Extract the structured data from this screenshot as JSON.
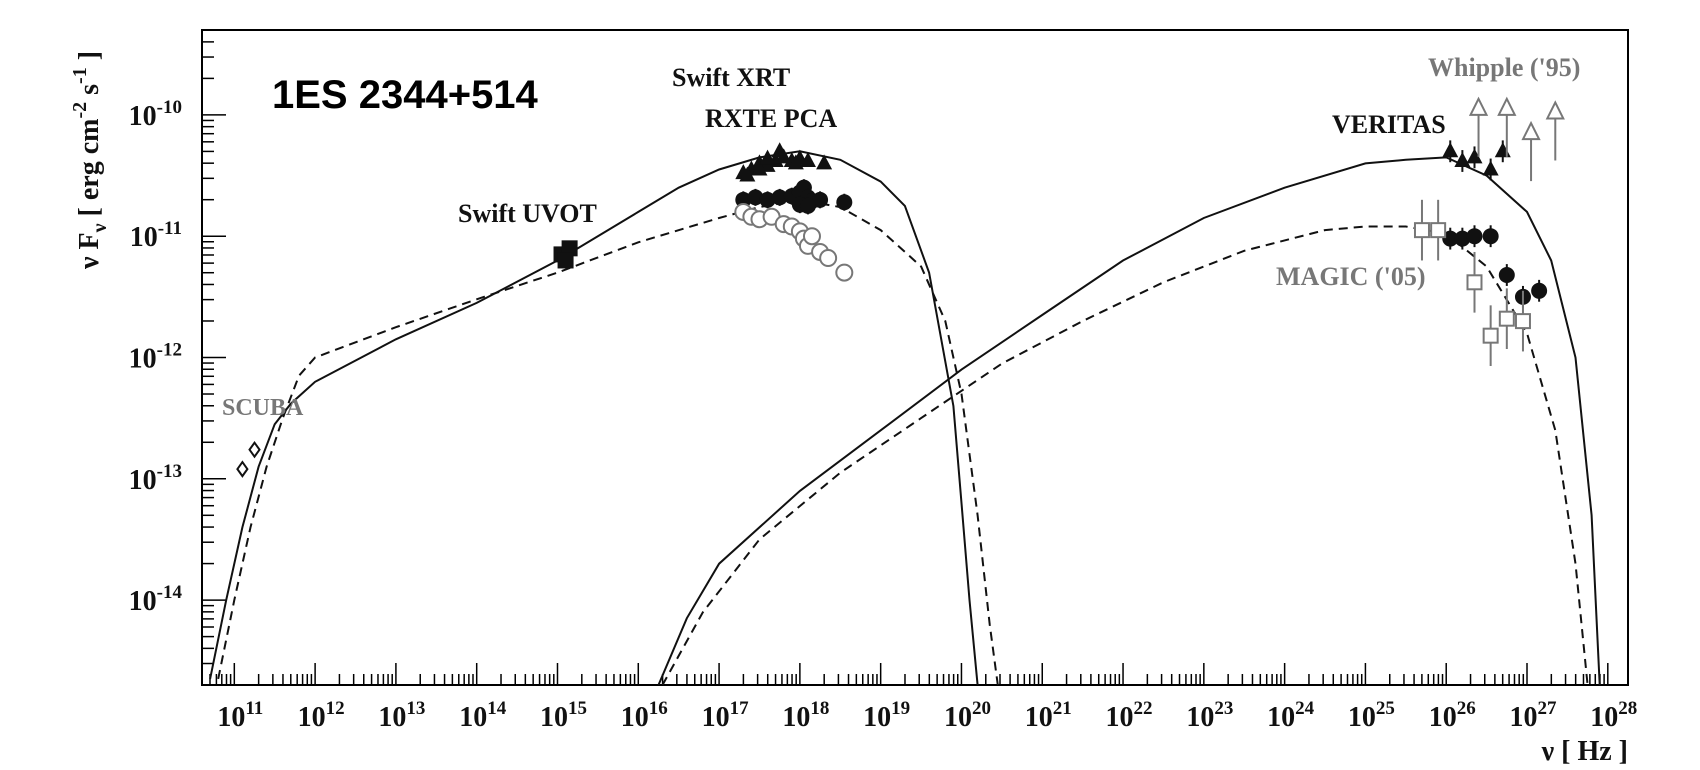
{
  "chart_data": {
    "type": "scatter",
    "title": "1ES 2344+514",
    "xlabel": "ν [ Hz ]",
    "ylabel": "ν F_ν [ erg cm^-2 s^-1 ]",
    "xscale": "log",
    "yscale": "log",
    "xlim": [
      10.6,
      28.25
    ],
    "ylim": [
      -14.7,
      -9.3
    ],
    "grid": false,
    "x_ticks": [
      "11",
      "12",
      "13",
      "14",
      "15",
      "16",
      "17",
      "18",
      "19",
      "20",
      "21",
      "22",
      "23",
      "24",
      "25",
      "26",
      "27",
      "28"
    ],
    "y_ticks": [
      "-14",
      "-13",
      "-12",
      "-11",
      "-10"
    ],
    "annotations": [
      {
        "text": "Swift XRT",
        "color": "#111111"
      },
      {
        "text": "RXTE PCA",
        "color": "#111111"
      },
      {
        "text": "Swift UVOT",
        "color": "#111111"
      },
      {
        "text": "SCUBA",
        "color": "#777777"
      },
      {
        "text": "VERITAS",
        "color": "#111111"
      },
      {
        "text": "Whipple ('95)",
        "color": "#777777"
      },
      {
        "text": "MAGIC ('05)",
        "color": "#777777"
      }
    ],
    "series": [
      {
        "key": "scuba",
        "marker": "open-diamond",
        "color": "#111111",
        "points": [
          [
            11.1,
            -12.92
          ],
          [
            11.25,
            -12.76
          ]
        ]
      },
      {
        "key": "uvot",
        "marker": "filled-square",
        "color": "#111111",
        "points": [
          [
            15.05,
            -11.15
          ],
          [
            15.15,
            -11.1
          ],
          [
            15.1,
            -11.2
          ]
        ]
      },
      {
        "key": "xrt",
        "marker": "filled-triangle",
        "color": "#111111",
        "points": [
          [
            17.3,
            -10.48
          ],
          [
            17.4,
            -10.45
          ],
          [
            17.5,
            -10.4
          ],
          [
            17.6,
            -10.42
          ],
          [
            17.7,
            -10.38
          ],
          [
            17.75,
            -10.3
          ],
          [
            17.8,
            -10.35
          ],
          [
            17.9,
            -10.38
          ],
          [
            18.0,
            -10.36
          ],
          [
            18.1,
            -10.38
          ],
          [
            18.3,
            -10.4
          ],
          [
            17.35,
            -10.5
          ],
          [
            17.5,
            -10.45
          ],
          [
            17.6,
            -10.36
          ],
          [
            17.95,
            -10.4
          ]
        ]
      },
      {
        "key": "rxte",
        "marker": "filled-circle",
        "color": "#111111",
        "points": [
          [
            17.3,
            -10.7
          ],
          [
            17.45,
            -10.68
          ],
          [
            17.6,
            -10.7
          ],
          [
            17.75,
            -10.68
          ],
          [
            17.9,
            -10.67
          ],
          [
            18.0,
            -10.64
          ],
          [
            18.05,
            -10.6
          ],
          [
            18.1,
            -10.68
          ],
          [
            18.15,
            -10.71
          ],
          [
            18.25,
            -10.7
          ],
          [
            18.0,
            -10.74
          ],
          [
            18.1,
            -10.75
          ],
          [
            18.55,
            -10.72
          ]
        ],
        "yerr": 0.07
      },
      {
        "key": "xrt_low",
        "marker": "open-circle",
        "color": "#777777",
        "points": [
          [
            17.3,
            -10.8
          ],
          [
            17.4,
            -10.84
          ],
          [
            17.5,
            -10.86
          ],
          [
            17.65,
            -10.84
          ],
          [
            17.8,
            -10.9
          ],
          [
            17.9,
            -10.92
          ],
          [
            18.0,
            -10.96
          ],
          [
            18.05,
            -11.02
          ],
          [
            18.1,
            -11.08
          ],
          [
            18.15,
            -11.0
          ],
          [
            18.25,
            -11.13
          ],
          [
            18.35,
            -11.18
          ],
          [
            18.55,
            -11.3
          ]
        ],
        "yerr": 0.07
      },
      {
        "key": "veritas",
        "marker": "filled-triangle",
        "color": "#111111",
        "points": [
          [
            26.05,
            -10.3
          ],
          [
            26.2,
            -10.38
          ],
          [
            26.35,
            -10.35
          ],
          [
            26.55,
            -10.45
          ],
          [
            26.7,
            -10.3
          ]
        ],
        "yerr": 0.09
      },
      {
        "key": "veritas_low",
        "marker": "filled-circle",
        "color": "#111111",
        "points": [
          [
            26.05,
            -11.02
          ],
          [
            26.2,
            -11.02
          ],
          [
            26.35,
            -11.0
          ],
          [
            26.55,
            -11.0
          ],
          [
            26.75,
            -11.32
          ],
          [
            26.95,
            -11.5
          ],
          [
            27.15,
            -11.45
          ]
        ],
        "yerr": 0.09
      },
      {
        "key": "whipple",
        "marker": "open-triangle",
        "color": "#777777",
        "points": [
          [
            26.4,
            -9.95
          ],
          [
            26.75,
            -9.95
          ],
          [
            27.05,
            -10.15
          ],
          [
            27.35,
            -9.98
          ]
        ],
        "upper_limit": true
      },
      {
        "key": "magic",
        "marker": "open-square",
        "color": "#777777",
        "points": [
          [
            25.7,
            -10.95
          ],
          [
            25.9,
            -10.95
          ],
          [
            26.35,
            -11.38
          ],
          [
            26.55,
            -11.82
          ],
          [
            26.75,
            -11.68
          ],
          [
            26.95,
            -11.7
          ]
        ],
        "yerr": 0.25
      }
    ],
    "curves": [
      {
        "key": "sync_solid",
        "style": "solid",
        "points": [
          [
            10.7,
            -14.65
          ],
          [
            10.9,
            -14.0
          ],
          [
            11.1,
            -13.4
          ],
          [
            11.3,
            -12.9
          ],
          [
            11.5,
            -12.55
          ],
          [
            11.7,
            -12.38
          ],
          [
            12.0,
            -12.2
          ],
          [
            13.0,
            -11.85
          ],
          [
            14.0,
            -11.55
          ],
          [
            15.0,
            -11.2
          ],
          [
            16.0,
            -10.8
          ],
          [
            16.5,
            -10.6
          ],
          [
            17.0,
            -10.45
          ],
          [
            17.5,
            -10.35
          ],
          [
            18.0,
            -10.3
          ],
          [
            18.5,
            -10.37
          ],
          [
            19.0,
            -10.55
          ],
          [
            19.3,
            -10.75
          ],
          [
            19.6,
            -11.3
          ],
          [
            19.9,
            -12.4
          ],
          [
            20.0,
            -13.2
          ],
          [
            20.1,
            -14.0
          ],
          [
            20.2,
            -14.7
          ]
        ]
      },
      {
        "key": "sync_dashed",
        "style": "dashed",
        "points": [
          [
            10.8,
            -14.65
          ],
          [
            11.0,
            -14.0
          ],
          [
            11.2,
            -13.4
          ],
          [
            11.4,
            -12.9
          ],
          [
            11.6,
            -12.5
          ],
          [
            11.8,
            -12.15
          ],
          [
            12.0,
            -12.0
          ],
          [
            13.0,
            -11.75
          ],
          [
            14.0,
            -11.52
          ],
          [
            15.0,
            -11.3
          ],
          [
            16.0,
            -11.05
          ],
          [
            17.0,
            -10.85
          ],
          [
            17.5,
            -10.76
          ],
          [
            18.0,
            -10.7
          ],
          [
            18.5,
            -10.76
          ],
          [
            19.0,
            -10.95
          ],
          [
            19.5,
            -11.25
          ],
          [
            19.8,
            -11.7
          ],
          [
            20.0,
            -12.3
          ],
          [
            20.2,
            -13.3
          ],
          [
            20.35,
            -14.2
          ],
          [
            20.45,
            -14.7
          ]
        ]
      },
      {
        "key": "ic_solid",
        "style": "solid",
        "points": [
          [
            16.25,
            -14.7
          ],
          [
            16.6,
            -14.15
          ],
          [
            17.0,
            -13.7
          ],
          [
            18.0,
            -13.1
          ],
          [
            19.0,
            -12.6
          ],
          [
            20.0,
            -12.1
          ],
          [
            21.0,
            -11.65
          ],
          [
            22.0,
            -11.2
          ],
          [
            23.0,
            -10.85
          ],
          [
            24.0,
            -10.6
          ],
          [
            25.0,
            -10.4
          ],
          [
            25.5,
            -10.37
          ],
          [
            26.0,
            -10.35
          ],
          [
            26.5,
            -10.5
          ],
          [
            27.0,
            -10.8
          ],
          [
            27.3,
            -11.2
          ],
          [
            27.6,
            -12.0
          ],
          [
            27.8,
            -13.3
          ],
          [
            27.9,
            -14.7
          ]
        ]
      },
      {
        "key": "ic_dashed",
        "style": "dashed",
        "points": [
          [
            16.3,
            -14.7
          ],
          [
            16.8,
            -14.1
          ],
          [
            17.5,
            -13.5
          ],
          [
            18.5,
            -12.95
          ],
          [
            19.5,
            -12.5
          ],
          [
            20.5,
            -12.05
          ],
          [
            21.5,
            -11.7
          ],
          [
            22.5,
            -11.38
          ],
          [
            23.5,
            -11.12
          ],
          [
            24.5,
            -10.95
          ],
          [
            25.0,
            -10.92
          ],
          [
            25.5,
            -10.92
          ],
          [
            26.0,
            -10.98
          ],
          [
            26.5,
            -11.25
          ],
          [
            27.0,
            -11.8
          ],
          [
            27.35,
            -12.6
          ],
          [
            27.6,
            -13.7
          ],
          [
            27.75,
            -14.7
          ]
        ]
      }
    ]
  }
}
